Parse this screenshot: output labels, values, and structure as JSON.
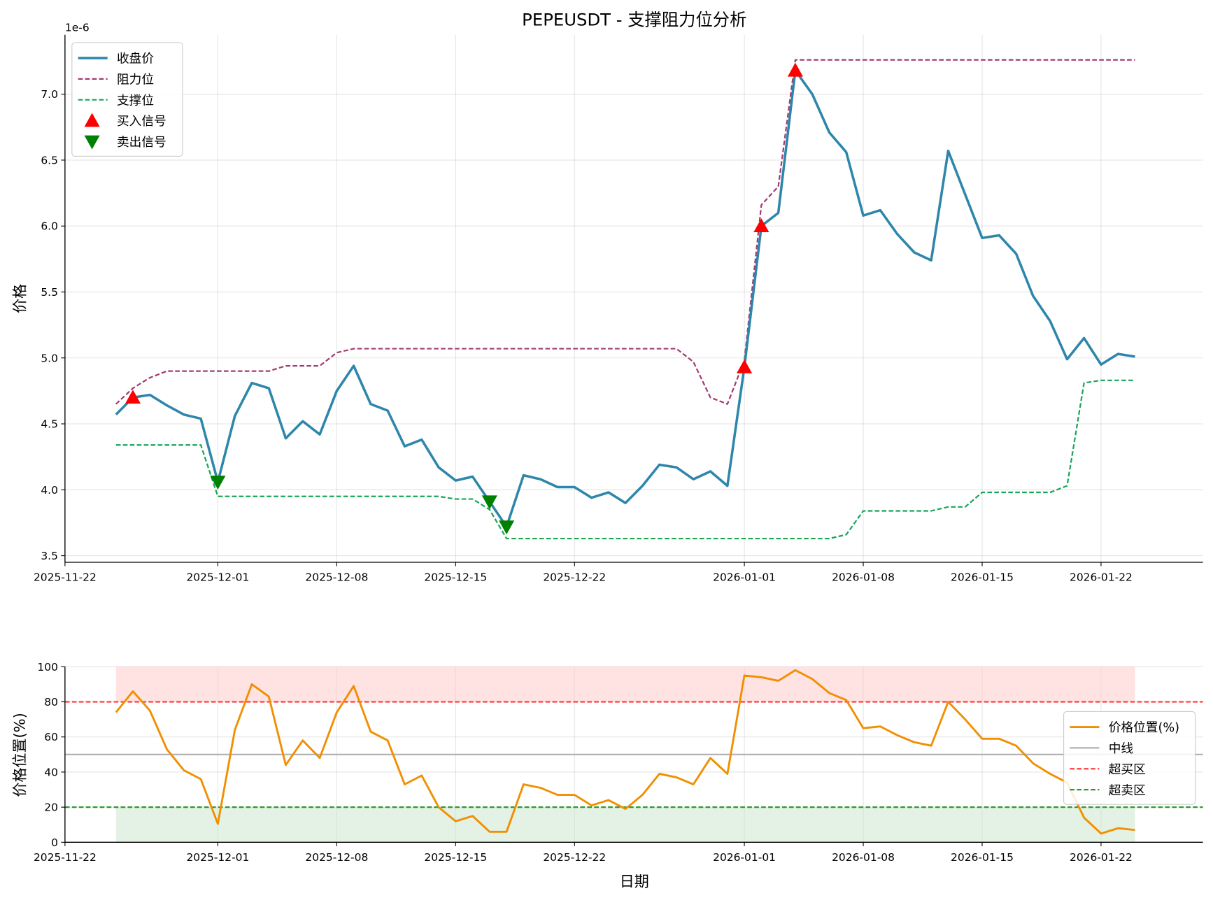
{
  "chart_data": [
    {
      "type": "line",
      "title": "PEPEUSDT - 支撑阻力位分析",
      "xlabel": "",
      "ylabel": "价格",
      "y_scale_label": "1e-6",
      "xlim": [
        "2025-11-22",
        "2026-01-28"
      ],
      "ylim": [
        3.45,
        7.45
      ],
      "x_ticks": [
        "2025-11-22",
        "2025-12-01",
        "2025-12-08",
        "2025-12-15",
        "2025-12-22",
        "2026-01-01",
        "2026-01-08",
        "2026-01-15",
        "2026-01-22"
      ],
      "y_ticks": [
        "3.5",
        "4.0",
        "4.5",
        "5.0",
        "5.5",
        "6.0",
        "6.5",
        "7.0"
      ],
      "grid": true,
      "legend_position": "top-left",
      "dates": [
        "2025-11-25",
        "2025-11-26",
        "2025-11-27",
        "2025-11-28",
        "2025-11-29",
        "2025-11-30",
        "2025-12-01",
        "2025-12-02",
        "2025-12-03",
        "2025-12-04",
        "2025-12-05",
        "2025-12-06",
        "2025-12-07",
        "2025-12-08",
        "2025-12-09",
        "2025-12-10",
        "2025-12-11",
        "2025-12-12",
        "2025-12-13",
        "2025-12-14",
        "2025-12-15",
        "2025-12-16",
        "2025-12-17",
        "2025-12-18",
        "2025-12-19",
        "2025-12-20",
        "2025-12-21",
        "2025-12-22",
        "2025-12-23",
        "2025-12-24",
        "2025-12-25",
        "2025-12-26",
        "2025-12-27",
        "2025-12-28",
        "2025-12-29",
        "2025-12-30",
        "2025-12-31",
        "2026-01-01",
        "2026-01-02",
        "2026-01-03",
        "2026-01-04",
        "2026-01-05",
        "2026-01-06",
        "2026-01-07",
        "2026-01-08",
        "2026-01-09",
        "2026-01-10",
        "2026-01-11",
        "2026-01-12",
        "2026-01-13",
        "2026-01-14",
        "2026-01-15",
        "2026-01-16",
        "2026-01-17",
        "2026-01-18",
        "2026-01-19",
        "2026-01-20",
        "2026-01-21",
        "2026-01-22",
        "2026-01-23",
        "2026-01-24"
      ],
      "series": [
        {
          "name": "收盘价",
          "color": "#2E86AB",
          "style": "solid",
          "values": [
            4.57,
            4.7,
            4.72,
            4.64,
            4.57,
            4.54,
            4.06,
            4.56,
            4.81,
            4.77,
            4.39,
            4.52,
            4.42,
            4.75,
            4.94,
            4.65,
            4.6,
            4.33,
            4.38,
            4.17,
            4.07,
            4.1,
            3.91,
            3.72,
            4.11,
            4.08,
            4.02,
            4.02,
            3.94,
            3.98,
            3.9,
            4.03,
            4.19,
            4.17,
            4.08,
            4.14,
            4.03,
            4.93,
            6.0,
            6.1,
            7.18,
            7.0,
            6.71,
            6.56,
            6.08,
            6.12,
            5.94,
            5.8,
            5.74,
            6.57,
            6.24,
            5.91,
            5.93,
            5.79,
            5.47,
            5.28,
            4.99,
            5.15,
            4.95,
            5.03,
            5.01
          ]
        },
        {
          "name": "阻力位",
          "color": "#A23B72",
          "style": "dashed",
          "values": [
            4.65,
            4.77,
            4.85,
            4.9,
            4.9,
            4.9,
            4.9,
            4.9,
            4.9,
            4.9,
            4.94,
            4.94,
            4.94,
            5.04,
            5.07,
            5.07,
            5.07,
            5.07,
            5.07,
            5.07,
            5.07,
            5.07,
            5.07,
            5.07,
            5.07,
            5.07,
            5.07,
            5.07,
            5.07,
            5.07,
            5.07,
            5.07,
            5.07,
            5.07,
            4.97,
            4.7,
            4.65,
            4.98,
            6.16,
            6.3,
            7.26,
            7.26,
            7.26,
            7.26,
            7.26,
            7.26,
            7.26,
            7.26,
            7.26,
            7.26,
            7.26,
            7.26,
            7.26,
            7.26,
            7.26,
            7.26,
            7.26,
            7.26,
            7.26,
            7.26,
            7.26
          ]
        },
        {
          "name": "支撑位",
          "color": "#18A558",
          "style": "dashed",
          "values": [
            4.34,
            4.34,
            4.34,
            4.34,
            4.34,
            4.34,
            3.95,
            3.95,
            3.95,
            3.95,
            3.95,
            3.95,
            3.95,
            3.95,
            3.95,
            3.95,
            3.95,
            3.95,
            3.95,
            3.95,
            3.93,
            3.93,
            3.85,
            3.63,
            3.63,
            3.63,
            3.63,
            3.63,
            3.63,
            3.63,
            3.63,
            3.63,
            3.63,
            3.63,
            3.63,
            3.63,
            3.63,
            3.63,
            3.63,
            3.63,
            3.63,
            3.63,
            3.63,
            3.66,
            3.84,
            3.84,
            3.84,
            3.84,
            3.84,
            3.87,
            3.87,
            3.98,
            3.98,
            3.98,
            3.98,
            3.98,
            4.03,
            4.81,
            4.83,
            4.83,
            4.83
          ]
        }
      ],
      "markers": [
        {
          "name": "买入信号",
          "color": "#FF0000",
          "shape": "triangle-up",
          "dates": [
            "2025-11-26",
            "2026-01-01",
            "2026-01-02",
            "2026-01-04"
          ],
          "values": [
            4.7,
            4.93,
            6.0,
            7.18
          ]
        },
        {
          "name": "卖出信号",
          "color": "#008000",
          "shape": "triangle-down",
          "dates": [
            "2025-12-01",
            "2025-12-17",
            "2025-12-18"
          ],
          "values": [
            4.06,
            3.91,
            3.72
          ]
        }
      ]
    },
    {
      "type": "line",
      "title": "",
      "xlabel": "日期",
      "ylabel": "价格位置(%)",
      "xlim": [
        "2025-11-22",
        "2026-01-28"
      ],
      "ylim": [
        0,
        100
      ],
      "x_ticks": [
        "2025-11-22",
        "2025-12-01",
        "2025-12-08",
        "2025-12-15",
        "2025-12-22",
        "2026-01-01",
        "2026-01-08",
        "2026-01-15",
        "2026-01-22"
      ],
      "y_ticks": [
        "0",
        "20",
        "40",
        "60",
        "80",
        "100"
      ],
      "grid": true,
      "legend_position": "right",
      "series": [
        {
          "name": "价格位置(%)",
          "color": "#F18F01",
          "style": "solid",
          "values": [
            74,
            86,
            75,
            53,
            41,
            36,
            10.5,
            64,
            90,
            83,
            44,
            58,
            48,
            74,
            89,
            63,
            58,
            33,
            38,
            20,
            12,
            15,
            6,
            6,
            33,
            31,
            27,
            27,
            21,
            24,
            19,
            27,
            39,
            37,
            33,
            48,
            39,
            95,
            94,
            92,
            98,
            93,
            85,
            81,
            65,
            66,
            61,
            57,
            55,
            80,
            70,
            59,
            59,
            55,
            45,
            39,
            34,
            14,
            5,
            8,
            7
          ]
        },
        {
          "name": "中线",
          "color": "#B0B0B0",
          "style": "solid",
          "value": 50
        },
        {
          "name": "超买区",
          "color": "#FF4040",
          "style": "dashed",
          "value": 80
        },
        {
          "name": "超卖区",
          "color": "#2E9A2E",
          "style": "dashed",
          "value": 20
        }
      ],
      "zones": [
        {
          "range": [
            80,
            100
          ],
          "color": "#FFCCCC"
        },
        {
          "range": [
            0,
            20
          ],
          "color": "#C8E6C9"
        }
      ]
    }
  ]
}
